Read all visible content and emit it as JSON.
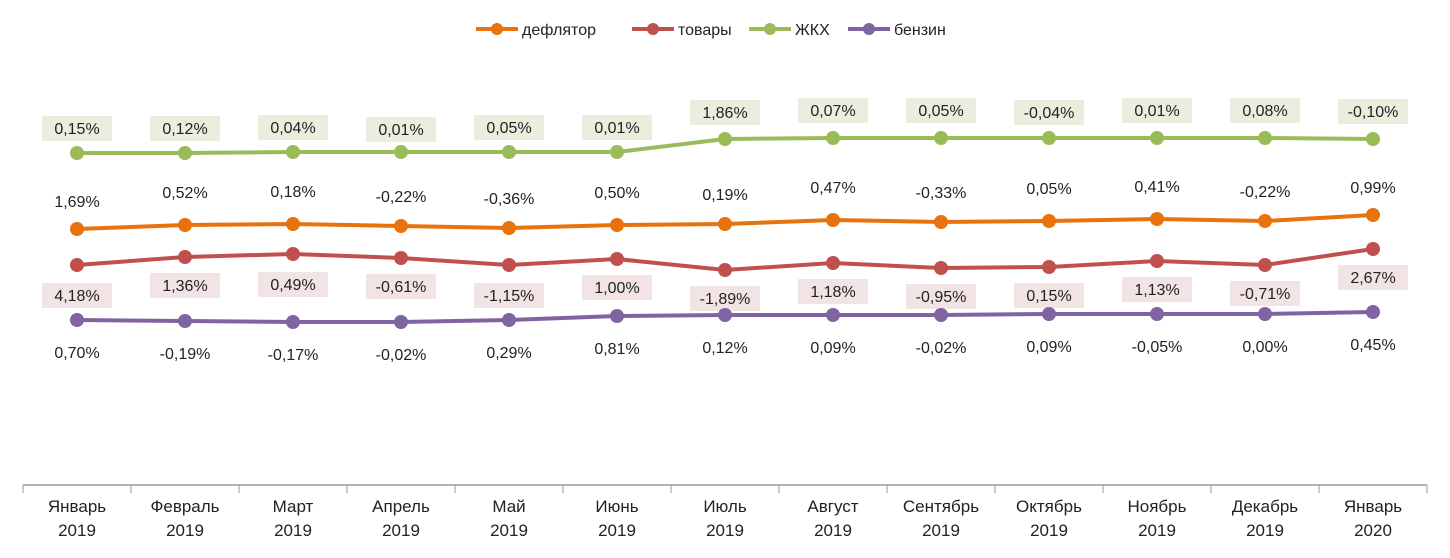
{
  "chart_data": {
    "type": "line",
    "categories": [
      "Январь 2019",
      "Февраль 2019",
      "Март 2019",
      "Апрель 2019",
      "Май 2019",
      "Июнь 2019",
      "Июль 2019",
      "Август 2019",
      "Сентябрь 2019",
      "Октябрь 2019",
      "Ноябрь 2019",
      "Декабрь 2019",
      "Январь 2020"
    ],
    "legend_position": "top",
    "grid": false,
    "series": [
      {
        "name": "дефлятор",
        "color": "#e8720c",
        "labels": [
          "1,69%",
          "0,52%",
          "0,18%",
          "-0,22%",
          "-0,36%",
          "0,50%",
          "0,19%",
          "0,47%",
          "-0,33%",
          "0,05%",
          "0,41%",
          "-0,22%",
          "0,99%"
        ],
        "values": [
          1.69,
          0.52,
          0.18,
          -0.22,
          -0.36,
          0.5,
          0.19,
          0.47,
          -0.33,
          0.05,
          0.41,
          -0.22,
          0.99
        ]
      },
      {
        "name": "товары",
        "color": "#c0504d",
        "labels": [
          "4,18%",
          "1,36%",
          "0,49%",
          "-0,61%",
          "-1,15%",
          "1,00%",
          "-1,89%",
          "1,18%",
          "-0,95%",
          "0,15%",
          "1,13%",
          "-0,71%",
          "2,67%"
        ],
        "values": [
          4.18,
          1.36,
          0.49,
          -0.61,
          -1.15,
          1.0,
          -1.89,
          1.18,
          -0.95,
          0.15,
          1.13,
          -0.71,
          2.67
        ]
      },
      {
        "name": "ЖКХ",
        "color": "#9bbb59",
        "labels": [
          "0,15%",
          "0,12%",
          "0,04%",
          "0,01%",
          "0,05%",
          "0,01%",
          "1,86%",
          "0,07%",
          "0,05%",
          "-0,04%",
          "0,01%",
          "0,08%",
          "-0,10%"
        ],
        "values": [
          0.15,
          0.12,
          0.04,
          0.01,
          0.05,
          0.01,
          1.86,
          0.07,
          0.05,
          -0.04,
          0.01,
          0.08,
          -0.1
        ]
      },
      {
        "name": "бензин",
        "color": "#8064a2",
        "labels": [
          "0,70%",
          "-0,19%",
          "-0,17%",
          "-0,02%",
          "0,29%",
          "0,81%",
          "0,12%",
          "0,09%",
          "-0,02%",
          "0,09%",
          "-0,05%",
          "0,00%",
          "0,45%"
        ],
        "values": [
          0.7,
          -0.19,
          -0.17,
          -0.02,
          0.29,
          0.81,
          0.12,
          0.09,
          -0.02,
          0.09,
          -0.05,
          0.0,
          0.45
        ]
      }
    ]
  }
}
